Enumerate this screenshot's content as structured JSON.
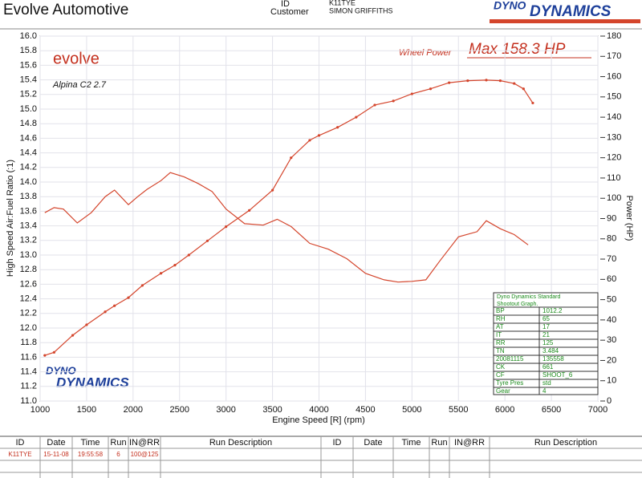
{
  "header": {
    "title": "Evolve Automotive",
    "id_label": "ID",
    "customer_label": "Customer",
    "id": "K11TYE",
    "customer": "SIMON GRIFFITHS",
    "logo": [
      "DYNO",
      "DYNAMICS"
    ]
  },
  "chart_data": {
    "type": "line",
    "x_label": "Engine Speed [R] (rpm)",
    "y_label": "High Speed Air:Fuel Ratio (:1)",
    "y2_label": "Power (HP)",
    "annotations": {
      "logo": "evolve",
      "vehicle": "Alpina C2 2.7",
      "max": "Max 158.3 HP",
      "dyno_logo": [
        "DYNO",
        "DYNAMICS"
      ]
    },
    "xlim": [
      1000,
      7000
    ],
    "xticks": [
      1000,
      1500,
      2000,
      2500,
      3000,
      3500,
      4000,
      4500,
      5000,
      5500,
      6000,
      6500,
      7000
    ],
    "ylim": [
      11,
      16
    ],
    "yticks": [
      {
        "value": 11,
        "label": "11.0"
      },
      11.2,
      11.4,
      11.6,
      11.8,
      {
        "value": 12,
        "label": "12.0"
      },
      12.2,
      12.4,
      12.6,
      12.8,
      {
        "value": 13,
        "label": "13.0"
      },
      13.2,
      13.4,
      13.6,
      13.8,
      {
        "value": 14,
        "label": "14.0"
      },
      14.2,
      14.4,
      14.6,
      14.8,
      {
        "value": 15,
        "label": "15.0"
      },
      15.2,
      15.4,
      15.6,
      15.8,
      {
        "value": 16,
        "label": "16.0"
      }
    ],
    "y2lim": [
      0,
      180
    ],
    "y2ticks": [
      0,
      10,
      20,
      30,
      40,
      50,
      60,
      70,
      80,
      90,
      100,
      110,
      120,
      130,
      140,
      150,
      160,
      170,
      180
    ],
    "grid": true,
    "series": [
      {
        "color": "#d4452c",
        "x": [
          1050,
          1150,
          1250,
          1400,
          1550,
          1700,
          1800,
          1950,
          2050,
          2150,
          2300,
          2400,
          2550,
          2700,
          2850,
          3000,
          3200,
          3400,
          3550,
          3700,
          3900,
          4100,
          4300,
          4500,
          4700,
          4850,
          5000,
          5150,
          5300,
          5500,
          5700,
          5800,
          5950,
          6100,
          6250
        ],
        "values": [
          13.58,
          13.65,
          13.63,
          13.44,
          13.58,
          13.8,
          13.89,
          13.69,
          13.8,
          13.9,
          14.02,
          14.13,
          14.07,
          13.98,
          13.87,
          13.63,
          13.43,
          13.41,
          13.49,
          13.39,
          13.16,
          13.08,
          12.95,
          12.75,
          12.66,
          12.63,
          12.64,
          12.66,
          12.92,
          13.25,
          13.32,
          13.47,
          13.36,
          13.28,
          13.14
        ]
      },
      {
        "name": "Wheel Power",
        "color": "#d4452c",
        "axis": "y2",
        "x": [
          1050,
          1150,
          1350,
          1500,
          1700,
          1800,
          1950,
          2100,
          2300,
          2450,
          2600,
          2800,
          3000,
          3250,
          3500,
          3700,
          3900,
          4000,
          4200,
          4400,
          4600,
          4800,
          5000,
          5200,
          5400,
          5600,
          5800,
          5950,
          6100,
          6200,
          6300
        ],
        "values": [
          22.5,
          24,
          32.4,
          37.6,
          44,
          47,
          51,
          57,
          63,
          67,
          72,
          79,
          86,
          94,
          104,
          120,
          128.6,
          131,
          135,
          140,
          146,
          148,
          151.5,
          154,
          157,
          158,
          158.3,
          158,
          156.6,
          154,
          147
        ]
      }
    ]
  },
  "shootout": {
    "title_lines": [
      "Dyno Dynamics Standard",
      "Shootout Graph."
    ],
    "rows": [
      [
        "BP",
        "1012.2"
      ],
      [
        "RH",
        "65"
      ],
      [
        "AT",
        "17"
      ],
      [
        "IT",
        "21"
      ],
      [
        "RR",
        "125"
      ],
      [
        "TN",
        "3.484"
      ],
      [
        "20081115",
        "135558"
      ],
      [
        "CK",
        "661"
      ],
      [
        "CF",
        "SHOOT_6"
      ],
      [
        "Tyre Pres",
        "std"
      ],
      [
        "Gear",
        "4"
      ]
    ]
  },
  "runs_table": {
    "columns": [
      "ID",
      "Date",
      "Time",
      "Run",
      "IN@RR",
      "Run Description",
      "ID",
      "Date",
      "Time",
      "Run",
      "IN@RR",
      "Run Description"
    ],
    "rows": [
      [
        "K11TYE",
        "15-11-08",
        "19:55:58",
        "6",
        "100@125"
      ]
    ]
  }
}
